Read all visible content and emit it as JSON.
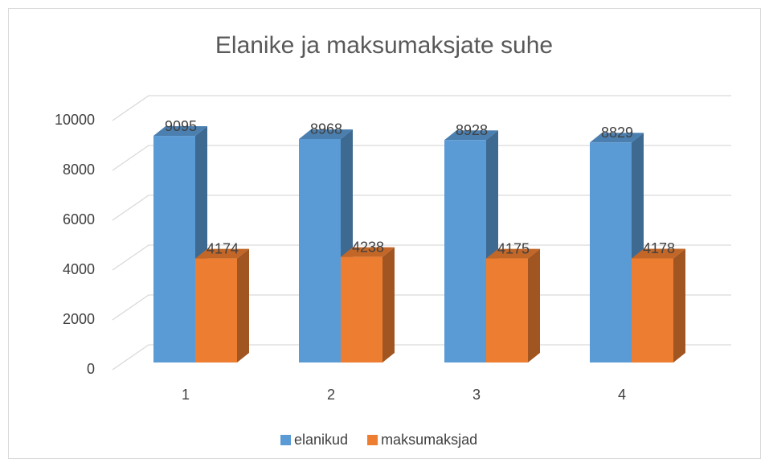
{
  "chart_data": {
    "type": "bar3d",
    "title": "Elanike ja maksumaksjate suhe",
    "categories": [
      "1",
      "2",
      "3",
      "4"
    ],
    "series": [
      {
        "name": "elanikud",
        "color": "#5b9bd5",
        "values": [
          9095,
          8968,
          8928,
          8829
        ]
      },
      {
        "name": "maksumaksjad",
        "color": "#ed7d31",
        "values": [
          4174,
          4238,
          4175,
          4178
        ]
      }
    ],
    "ylim": [
      0,
      10000
    ],
    "yticks": [
      0,
      2000,
      4000,
      6000,
      8000,
      10000
    ],
    "grid": true,
    "legend": "bottom"
  }
}
